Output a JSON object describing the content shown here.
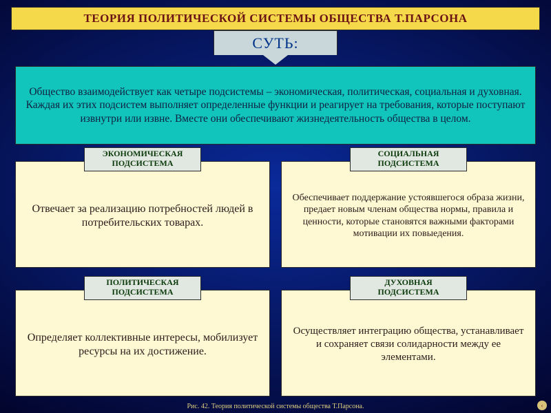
{
  "colors": {
    "bg_gradient_inner": "#0a2a9a",
    "bg_gradient_outer": "#02042a",
    "title_bg": "#f6d94a",
    "title_text": "#6b1414",
    "title_border": "#2a2a2a",
    "essence_bg": "#c9d7db",
    "essence_text": "#003388",
    "essence_border": "#2a2a2a",
    "desc_bg": "#11c4bc",
    "desc_text": "#102040",
    "desc_border": "#2a2a2a",
    "sublabel_bg": "#e1e7e1",
    "sublabel_text": "#0b3a0b",
    "sublabel_border": "#2a2a2a",
    "body_bg": "#fef9d2",
    "body_text": "#2a1a1a",
    "body_border": "#2a2a2a",
    "caption_text": "#e0d080",
    "btn_bg": "#d8c27a",
    "btn_text": "#7a2a2a"
  },
  "typography": {
    "title_fontsize": 17,
    "essence_fontsize": 22,
    "desc_fontsize": 15.5,
    "sublabel_fontsize": 12,
    "body_fontsize_large": 16,
    "body_fontsize_small": 14.5,
    "caption_fontsize": 10
  },
  "title": "ТЕОРИЯ ПОЛИТИЧЕСКОЙ СИСТЕМЫ ОБЩЕСТВА Т.ПАРСОНА",
  "essence_label": "СУТЬ:",
  "main_description": "Общество взаимодействует как четыре подсистемы – экономическая, политическая, социальная и духовная. Каждая их этих подсистем выполняет определенные функции и реагирует на требования, которые поступают извнутри или извне. Вместе они обеспечивают жизнедеятельность общества в целом.",
  "subsystems": [
    {
      "label_line1": "ЭКОНОМИЧЕСКАЯ",
      "label_line2": "ПОДСИСТЕМА",
      "body": "Отвечает за реализацию потребностей людей в потребительских товарах.",
      "body_fontsize": 16
    },
    {
      "label_line1": "СОЦИАЛЬНАЯ",
      "label_line2": "ПОДСИСТЕМА",
      "body": "Обеспечивает поддержание устоявшегося образа жизни, предает новым членам общества нормы, правила и ценности, которые становятся важными факторами мотивации их повыедения.",
      "body_fontsize": 14
    },
    {
      "label_line1": "ПОЛИТИЧЕСКАЯ",
      "label_line2": "ПОДСИСТЕМА",
      "body": "Определяет коллективные интересы, мобилизует ресурсы на их достижение.",
      "body_fontsize": 16
    },
    {
      "label_line1": "ДУХОВНАЯ",
      "label_line2": "ПОДСИСТЕМА",
      "body": "Осуществляет интеграцию общества, устанавливает и сохраняет связи солидарности между ее элементами.",
      "body_fontsize": 15
    }
  ],
  "caption": "Рис. 42. Теория политической системы общества Т.Парсона.",
  "corner_button_glyph": "‹"
}
